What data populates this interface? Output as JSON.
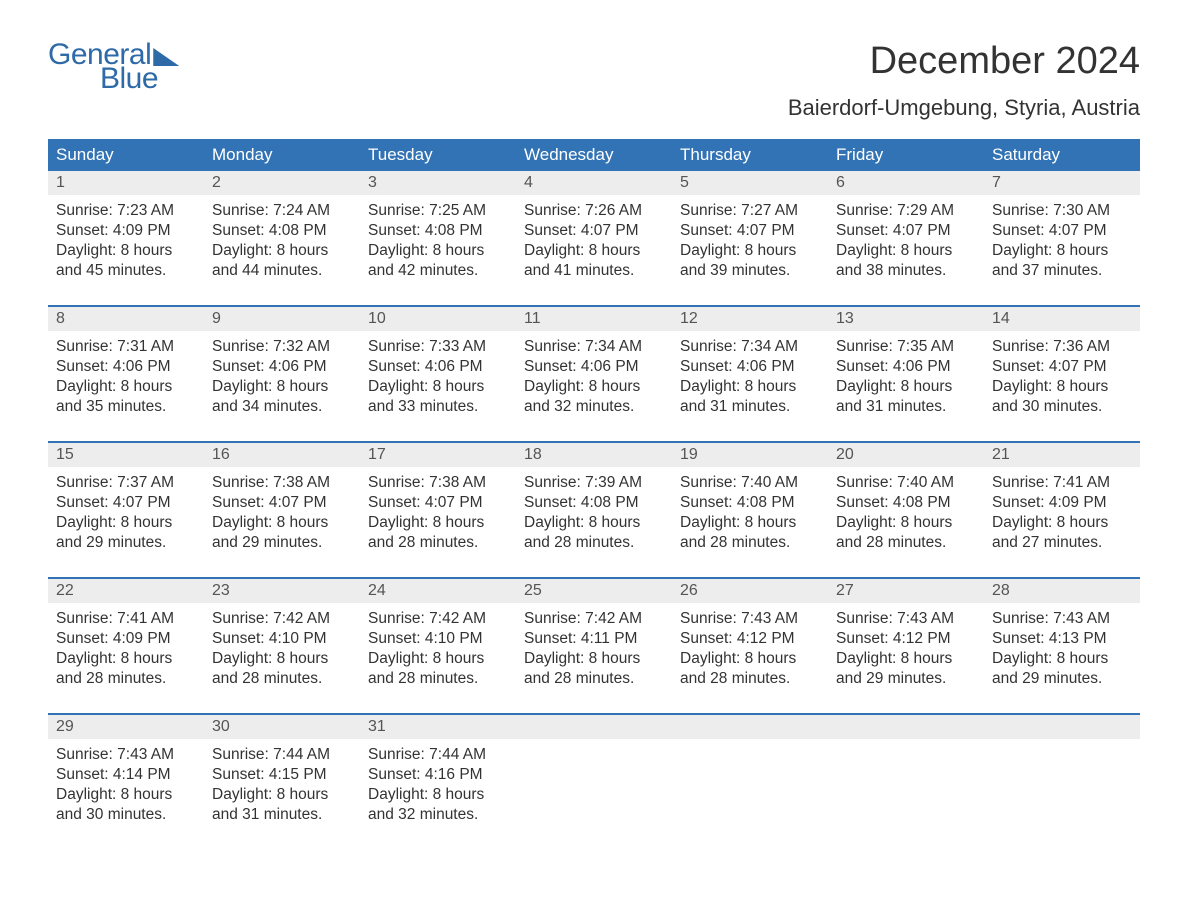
{
  "logo": {
    "general": "General",
    "blue": "Blue"
  },
  "title": "December 2024",
  "location": "Baierdorf-Umgebung, Styria, Austria",
  "colors": {
    "brand": "#2e6aa8",
    "header_bg": "#3273b5",
    "header_text": "#ffffff",
    "daynum_bg": "#ededed",
    "text": "#333333",
    "background": "#ffffff"
  },
  "dayheads": [
    "Sunday",
    "Monday",
    "Tuesday",
    "Wednesday",
    "Thursday",
    "Friday",
    "Saturday"
  ],
  "weeks": [
    [
      {
        "day": "1",
        "sunrise": "Sunrise: 7:23 AM",
        "sunset": "Sunset: 4:09 PM",
        "dl1": "Daylight: 8 hours",
        "dl2": "and 45 minutes."
      },
      {
        "day": "2",
        "sunrise": "Sunrise: 7:24 AM",
        "sunset": "Sunset: 4:08 PM",
        "dl1": "Daylight: 8 hours",
        "dl2": "and 44 minutes."
      },
      {
        "day": "3",
        "sunrise": "Sunrise: 7:25 AM",
        "sunset": "Sunset: 4:08 PM",
        "dl1": "Daylight: 8 hours",
        "dl2": "and 42 minutes."
      },
      {
        "day": "4",
        "sunrise": "Sunrise: 7:26 AM",
        "sunset": "Sunset: 4:07 PM",
        "dl1": "Daylight: 8 hours",
        "dl2": "and 41 minutes."
      },
      {
        "day": "5",
        "sunrise": "Sunrise: 7:27 AM",
        "sunset": "Sunset: 4:07 PM",
        "dl1": "Daylight: 8 hours",
        "dl2": "and 39 minutes."
      },
      {
        "day": "6",
        "sunrise": "Sunrise: 7:29 AM",
        "sunset": "Sunset: 4:07 PM",
        "dl1": "Daylight: 8 hours",
        "dl2": "and 38 minutes."
      },
      {
        "day": "7",
        "sunrise": "Sunrise: 7:30 AM",
        "sunset": "Sunset: 4:07 PM",
        "dl1": "Daylight: 8 hours",
        "dl2": "and 37 minutes."
      }
    ],
    [
      {
        "day": "8",
        "sunrise": "Sunrise: 7:31 AM",
        "sunset": "Sunset: 4:06 PM",
        "dl1": "Daylight: 8 hours",
        "dl2": "and 35 minutes."
      },
      {
        "day": "9",
        "sunrise": "Sunrise: 7:32 AM",
        "sunset": "Sunset: 4:06 PM",
        "dl1": "Daylight: 8 hours",
        "dl2": "and 34 minutes."
      },
      {
        "day": "10",
        "sunrise": "Sunrise: 7:33 AM",
        "sunset": "Sunset: 4:06 PM",
        "dl1": "Daylight: 8 hours",
        "dl2": "and 33 minutes."
      },
      {
        "day": "11",
        "sunrise": "Sunrise: 7:34 AM",
        "sunset": "Sunset: 4:06 PM",
        "dl1": "Daylight: 8 hours",
        "dl2": "and 32 minutes."
      },
      {
        "day": "12",
        "sunrise": "Sunrise: 7:34 AM",
        "sunset": "Sunset: 4:06 PM",
        "dl1": "Daylight: 8 hours",
        "dl2": "and 31 minutes."
      },
      {
        "day": "13",
        "sunrise": "Sunrise: 7:35 AM",
        "sunset": "Sunset: 4:06 PM",
        "dl1": "Daylight: 8 hours",
        "dl2": "and 31 minutes."
      },
      {
        "day": "14",
        "sunrise": "Sunrise: 7:36 AM",
        "sunset": "Sunset: 4:07 PM",
        "dl1": "Daylight: 8 hours",
        "dl2": "and 30 minutes."
      }
    ],
    [
      {
        "day": "15",
        "sunrise": "Sunrise: 7:37 AM",
        "sunset": "Sunset: 4:07 PM",
        "dl1": "Daylight: 8 hours",
        "dl2": "and 29 minutes."
      },
      {
        "day": "16",
        "sunrise": "Sunrise: 7:38 AM",
        "sunset": "Sunset: 4:07 PM",
        "dl1": "Daylight: 8 hours",
        "dl2": "and 29 minutes."
      },
      {
        "day": "17",
        "sunrise": "Sunrise: 7:38 AM",
        "sunset": "Sunset: 4:07 PM",
        "dl1": "Daylight: 8 hours",
        "dl2": "and 28 minutes."
      },
      {
        "day": "18",
        "sunrise": "Sunrise: 7:39 AM",
        "sunset": "Sunset: 4:08 PM",
        "dl1": "Daylight: 8 hours",
        "dl2": "and 28 minutes."
      },
      {
        "day": "19",
        "sunrise": "Sunrise: 7:40 AM",
        "sunset": "Sunset: 4:08 PM",
        "dl1": "Daylight: 8 hours",
        "dl2": "and 28 minutes."
      },
      {
        "day": "20",
        "sunrise": "Sunrise: 7:40 AM",
        "sunset": "Sunset: 4:08 PM",
        "dl1": "Daylight: 8 hours",
        "dl2": "and 28 minutes."
      },
      {
        "day": "21",
        "sunrise": "Sunrise: 7:41 AM",
        "sunset": "Sunset: 4:09 PM",
        "dl1": "Daylight: 8 hours",
        "dl2": "and 27 minutes."
      }
    ],
    [
      {
        "day": "22",
        "sunrise": "Sunrise: 7:41 AM",
        "sunset": "Sunset: 4:09 PM",
        "dl1": "Daylight: 8 hours",
        "dl2": "and 28 minutes."
      },
      {
        "day": "23",
        "sunrise": "Sunrise: 7:42 AM",
        "sunset": "Sunset: 4:10 PM",
        "dl1": "Daylight: 8 hours",
        "dl2": "and 28 minutes."
      },
      {
        "day": "24",
        "sunrise": "Sunrise: 7:42 AM",
        "sunset": "Sunset: 4:10 PM",
        "dl1": "Daylight: 8 hours",
        "dl2": "and 28 minutes."
      },
      {
        "day": "25",
        "sunrise": "Sunrise: 7:42 AM",
        "sunset": "Sunset: 4:11 PM",
        "dl1": "Daylight: 8 hours",
        "dl2": "and 28 minutes."
      },
      {
        "day": "26",
        "sunrise": "Sunrise: 7:43 AM",
        "sunset": "Sunset: 4:12 PM",
        "dl1": "Daylight: 8 hours",
        "dl2": "and 28 minutes."
      },
      {
        "day": "27",
        "sunrise": "Sunrise: 7:43 AM",
        "sunset": "Sunset: 4:12 PM",
        "dl1": "Daylight: 8 hours",
        "dl2": "and 29 minutes."
      },
      {
        "day": "28",
        "sunrise": "Sunrise: 7:43 AM",
        "sunset": "Sunset: 4:13 PM",
        "dl1": "Daylight: 8 hours",
        "dl2": "and 29 minutes."
      }
    ],
    [
      {
        "day": "29",
        "sunrise": "Sunrise: 7:43 AM",
        "sunset": "Sunset: 4:14 PM",
        "dl1": "Daylight: 8 hours",
        "dl2": "and 30 minutes."
      },
      {
        "day": "30",
        "sunrise": "Sunrise: 7:44 AM",
        "sunset": "Sunset: 4:15 PM",
        "dl1": "Daylight: 8 hours",
        "dl2": "and 31 minutes."
      },
      {
        "day": "31",
        "sunrise": "Sunrise: 7:44 AM",
        "sunset": "Sunset: 4:16 PM",
        "dl1": "Daylight: 8 hours",
        "dl2": "and 32 minutes."
      },
      {
        "empty": true
      },
      {
        "empty": true
      },
      {
        "empty": true
      },
      {
        "empty": true
      }
    ]
  ]
}
